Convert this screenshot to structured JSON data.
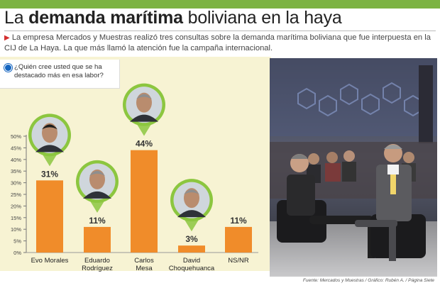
{
  "headline": {
    "prefix": "La ",
    "bold": "demanda marítima",
    "suffix": " boliviana en la haya"
  },
  "lead_text": "La empresa Mercados y Muestras realizó tres consultas sobre la demanda marítima boliviana que fue interpuesta en la CIJ de La Haya. La que más llamó la atención fue la campaña internacional.",
  "question": "¿Quién cree usted que se ha destacado más en esa labor?",
  "credit": "Fuente: Mercados y Muestras / Gráfico: Rubén A. / Página Siete",
  "colors": {
    "bar": "#f08c2a",
    "background": "#f7f3d3",
    "topbar": "#7cb342",
    "pin": "#8cc63f"
  },
  "chart_data": {
    "type": "bar",
    "title": "¿Quién cree usted que se ha destacado más en esa labor?",
    "categories": [
      "Evo Morales",
      "Eduardo Rodríguez Veltzé",
      "Carlos Mesa",
      "David Choquehuanca",
      "NS/NR"
    ],
    "category_lines": [
      [
        "Evo Morales"
      ],
      [
        "Eduardo",
        "Rodríguez",
        "Veltzé"
      ],
      [
        "Carlos",
        "Mesa"
      ],
      [
        "David",
        "Choquehuanca"
      ],
      [
        "NS/NR"
      ]
    ],
    "values": [
      31,
      11,
      44,
      3,
      11
    ],
    "value_labels": [
      "31%",
      "11%",
      "44%",
      "3%",
      "11%"
    ],
    "portraits": [
      true,
      true,
      true,
      true,
      false
    ],
    "yticks": [
      "0%",
      "5%",
      "10%",
      "15%",
      "20%",
      "25%",
      "30%",
      "35%",
      "40%",
      "45%",
      "50%"
    ],
    "ylim": [
      0,
      50
    ],
    "unit": "%",
    "xlabel": "",
    "ylabel": ""
  }
}
